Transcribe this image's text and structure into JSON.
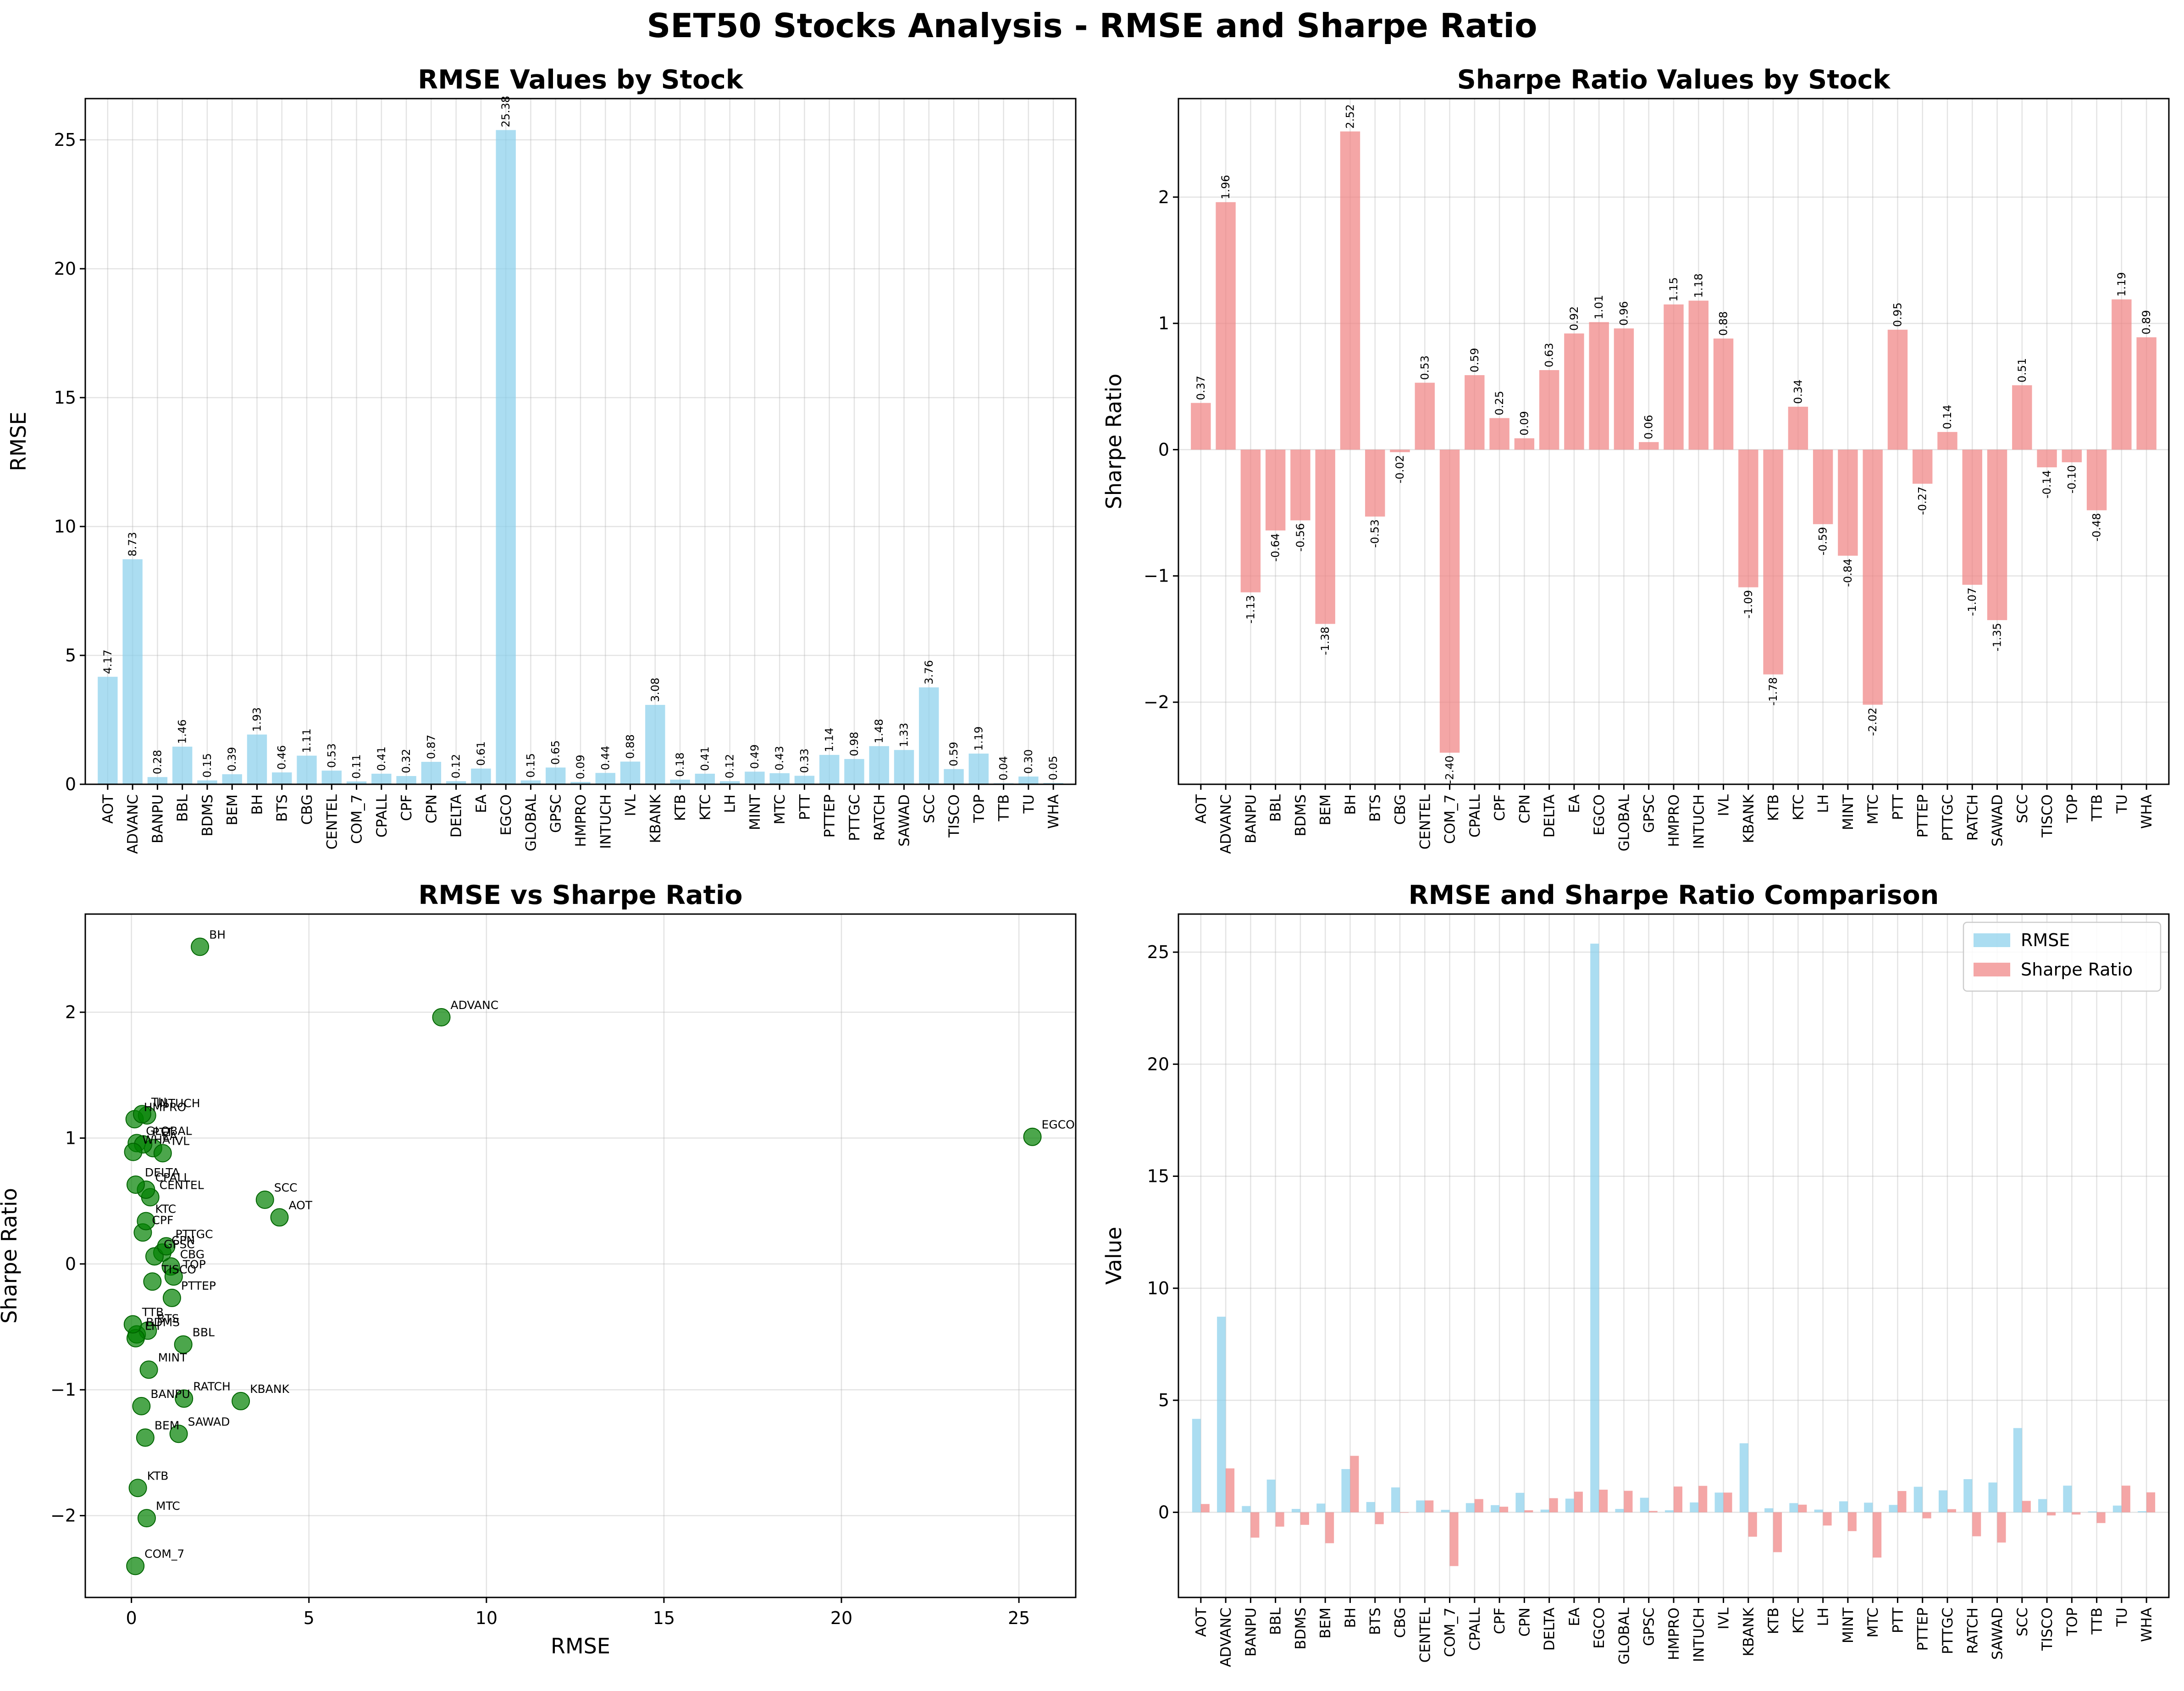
{
  "suptitle": "SET50 Stocks Analysis - RMSE and Sharpe Ratio",
  "colors": {
    "rmse": "#87ceeb",
    "sharpe": "#f08080",
    "scatter": "#008000"
  },
  "chart_data": [
    {
      "type": "bar",
      "title": "RMSE Values by Stock",
      "xlabel": "",
      "ylabel": "RMSE",
      "ylim": [
        0,
        26.6
      ],
      "yticks": [
        0,
        5,
        10,
        15,
        20,
        25
      ],
      "grid": true,
      "categories": [
        "AOT",
        "ADVANC",
        "BANPU",
        "BBL",
        "BDMS",
        "BEM",
        "BH",
        "BTS",
        "CBG",
        "CENTEL",
        "COM_7",
        "CPALL",
        "CPF",
        "CPN",
        "DELTA",
        "EA",
        "EGCO",
        "GLOBAL",
        "GPSC",
        "HMPRO",
        "INTUCH",
        "IVL",
        "KBANK",
        "KTB",
        "KTC",
        "LH",
        "MINT",
        "MTC",
        "PTT",
        "PTTEP",
        "PTTGC",
        "RATCH",
        "SAWAD",
        "SCC",
        "TISCO",
        "TOP",
        "TTB",
        "TU",
        "WHA"
      ],
      "values": [
        4.17,
        8.73,
        0.28,
        1.46,
        0.15,
        0.39,
        1.93,
        0.46,
        1.11,
        0.53,
        0.11,
        0.41,
        0.32,
        0.87,
        0.12,
        0.61,
        25.38,
        0.15,
        0.65,
        0.09,
        0.44,
        0.88,
        3.08,
        0.18,
        0.41,
        0.12,
        0.49,
        0.43,
        0.33,
        1.14,
        0.98,
        1.48,
        1.33,
        3.76,
        0.59,
        1.19,
        0.04,
        0.3,
        0.05
      ],
      "data_labels": [
        "4.17",
        "8.73",
        "0.28",
        "1.46",
        "0.15",
        "0.39",
        "1.93",
        "0.46",
        "1.11",
        "0.53",
        "0.11",
        "0.41",
        "0.32",
        "0.87",
        "0.12",
        "0.61",
        "25.38",
        "0.15",
        "0.65",
        "0.09",
        "0.44",
        "0.88",
        "3.08",
        "0.18",
        "0.41",
        "0.12",
        "0.49",
        "0.43",
        "0.33",
        "1.14",
        "0.98",
        "1.48",
        "1.33",
        "3.76",
        "0.59",
        "1.19",
        "0.04",
        "0.30",
        "0.05"
      ]
    },
    {
      "type": "bar",
      "title": "Sharpe Ratio Values by Stock",
      "xlabel": "",
      "ylabel": "Sharpe Ratio",
      "ylim": [
        -2.65,
        2.78
      ],
      "yticks": [
        -2,
        -1,
        0,
        1,
        2
      ],
      "grid": true,
      "categories": [
        "AOT",
        "ADVANC",
        "BANPU",
        "BBL",
        "BDMS",
        "BEM",
        "BH",
        "BTS",
        "CBG",
        "CENTEL",
        "COM_7",
        "CPALL",
        "CPF",
        "CPN",
        "DELTA",
        "EA",
        "EGCO",
        "GLOBAL",
        "GPSC",
        "HMPRO",
        "INTUCH",
        "IVL",
        "KBANK",
        "KTB",
        "KTC",
        "LH",
        "MINT",
        "MTC",
        "PTT",
        "PTTEP",
        "PTTGC",
        "RATCH",
        "SAWAD",
        "SCC",
        "TISCO",
        "TOP",
        "TTB",
        "TU",
        "WHA"
      ],
      "values": [
        0.37,
        1.96,
        -1.13,
        -0.64,
        -0.56,
        -1.38,
        2.52,
        -0.53,
        -0.02,
        0.53,
        -2.4,
        0.59,
        0.25,
        0.09,
        0.63,
        0.92,
        1.01,
        0.96,
        0.06,
        1.15,
        1.18,
        0.88,
        -1.09,
        -1.78,
        0.34,
        -0.59,
        -0.84,
        -2.02,
        0.95,
        -0.27,
        0.14,
        -1.07,
        -1.35,
        0.51,
        -0.14,
        -0.1,
        -0.48,
        1.19,
        0.89
      ],
      "data_labels": [
        "0.37",
        "1.96",
        "-1.13",
        "-0.64",
        "-0.56",
        "-1.38",
        "2.52",
        "-0.53",
        "-0.02",
        "0.53",
        "-2.40",
        "0.59",
        "0.25",
        "0.09",
        "0.63",
        "0.92",
        "1.01",
        "0.96",
        "0.06",
        "1.15",
        "1.18",
        "0.88",
        "-1.09",
        "-1.78",
        "0.34",
        "-0.59",
        "-0.84",
        "-2.02",
        "0.95",
        "-0.27",
        "0.14",
        "-1.07",
        "-1.35",
        "0.51",
        "-0.14",
        "-0.10",
        "-0.48",
        "1.19",
        "0.89"
      ]
    },
    {
      "type": "scatter",
      "title": "RMSE vs Sharpe Ratio",
      "xlabel": "RMSE",
      "ylabel": "Sharpe Ratio",
      "xlim": [
        -1.3,
        26.6
      ],
      "ylim": [
        -2.65,
        2.78
      ],
      "xticks": [
        0,
        5,
        10,
        15,
        20,
        25
      ],
      "yticks": [
        -2,
        -1,
        0,
        1,
        2
      ],
      "grid": true,
      "points": [
        {
          "label": "AOT",
          "x": 4.17,
          "y": 0.37
        },
        {
          "label": "ADVANC",
          "x": 8.73,
          "y": 1.96
        },
        {
          "label": "BANPU",
          "x": 0.28,
          "y": -1.13
        },
        {
          "label": "BBL",
          "x": 1.46,
          "y": -0.64
        },
        {
          "label": "BDMS",
          "x": 0.15,
          "y": -0.56
        },
        {
          "label": "BEM",
          "x": 0.39,
          "y": -1.38
        },
        {
          "label": "BH",
          "x": 1.93,
          "y": 2.52
        },
        {
          "label": "BTS",
          "x": 0.46,
          "y": -0.53
        },
        {
          "label": "CBG",
          "x": 1.11,
          "y": -0.02
        },
        {
          "label": "CENTEL",
          "x": 0.53,
          "y": 0.53
        },
        {
          "label": "COM_7",
          "x": 0.11,
          "y": -2.4
        },
        {
          "label": "CPALL",
          "x": 0.41,
          "y": 0.59
        },
        {
          "label": "CPF",
          "x": 0.32,
          "y": 0.25
        },
        {
          "label": "CPN",
          "x": 0.87,
          "y": 0.09
        },
        {
          "label": "DELTA",
          "x": 0.12,
          "y": 0.63
        },
        {
          "label": "EA",
          "x": 0.61,
          "y": 0.92
        },
        {
          "label": "EGCO",
          "x": 25.38,
          "y": 1.01
        },
        {
          "label": "GLOBAL",
          "x": 0.15,
          "y": 0.96
        },
        {
          "label": "GPSC",
          "x": 0.65,
          "y": 0.06
        },
        {
          "label": "HMPRO",
          "x": 0.09,
          "y": 1.15
        },
        {
          "label": "INTUCH",
          "x": 0.44,
          "y": 1.18
        },
        {
          "label": "IVL",
          "x": 0.88,
          "y": 0.88
        },
        {
          "label": "KBANK",
          "x": 3.08,
          "y": -1.09
        },
        {
          "label": "KTB",
          "x": 0.18,
          "y": -1.78
        },
        {
          "label": "KTC",
          "x": 0.41,
          "y": 0.34
        },
        {
          "label": "LH",
          "x": 0.12,
          "y": -0.59
        },
        {
          "label": "MINT",
          "x": 0.49,
          "y": -0.84
        },
        {
          "label": "MTC",
          "x": 0.43,
          "y": -2.02
        },
        {
          "label": "PTT",
          "x": 0.33,
          "y": 0.95
        },
        {
          "label": "PTTEP",
          "x": 1.14,
          "y": -0.27
        },
        {
          "label": "PTTGC",
          "x": 0.98,
          "y": 0.14
        },
        {
          "label": "RATCH",
          "x": 1.48,
          "y": -1.07
        },
        {
          "label": "SAWAD",
          "x": 1.33,
          "y": -1.35
        },
        {
          "label": "SCC",
          "x": 3.76,
          "y": 0.51
        },
        {
          "label": "TISCO",
          "x": 0.59,
          "y": -0.14
        },
        {
          "label": "TOP",
          "x": 1.19,
          "y": -0.1
        },
        {
          "label": "TTB",
          "x": 0.04,
          "y": -0.48
        },
        {
          "label": "TU",
          "x": 0.3,
          "y": 1.19
        },
        {
          "label": "WHA",
          "x": 0.05,
          "y": 0.89
        }
      ]
    },
    {
      "type": "bar",
      "title": "RMSE and Sharpe Ratio Comparison",
      "xlabel": "",
      "ylabel": "Value",
      "ylim": [
        -3.8,
        26.7
      ],
      "yticks": [
        0,
        5,
        10,
        15,
        20,
        25
      ],
      "grid": true,
      "legend": "top-right",
      "categories": [
        "AOT",
        "ADVANC",
        "BANPU",
        "BBL",
        "BDMS",
        "BEM",
        "BH",
        "BTS",
        "CBG",
        "CENTEL",
        "COM_7",
        "CPALL",
        "CPF",
        "CPN",
        "DELTA",
        "EA",
        "EGCO",
        "GLOBAL",
        "GPSC",
        "HMPRO",
        "INTUCH",
        "IVL",
        "KBANK",
        "KTB",
        "KTC",
        "LH",
        "MINT",
        "MTC",
        "PTT",
        "PTTEP",
        "PTTGC",
        "RATCH",
        "SAWAD",
        "SCC",
        "TISCO",
        "TOP",
        "TTB",
        "TU",
        "WHA"
      ],
      "series": [
        {
          "name": "RMSE",
          "values": [
            4.17,
            8.73,
            0.28,
            1.46,
            0.15,
            0.39,
            1.93,
            0.46,
            1.11,
            0.53,
            0.11,
            0.41,
            0.32,
            0.87,
            0.12,
            0.61,
            25.38,
            0.15,
            0.65,
            0.09,
            0.44,
            0.88,
            3.08,
            0.18,
            0.41,
            0.12,
            0.49,
            0.43,
            0.33,
            1.14,
            0.98,
            1.48,
            1.33,
            3.76,
            0.59,
            1.19,
            0.04,
            0.3,
            0.05
          ]
        },
        {
          "name": "Sharpe Ratio",
          "values": [
            0.37,
            1.96,
            -1.13,
            -0.64,
            -0.56,
            -1.38,
            2.52,
            -0.53,
            -0.02,
            0.53,
            -2.4,
            0.59,
            0.25,
            0.09,
            0.63,
            0.92,
            1.01,
            0.96,
            0.06,
            1.15,
            1.18,
            0.88,
            -1.09,
            -1.78,
            0.34,
            -0.59,
            -0.84,
            -2.02,
            0.95,
            -0.27,
            0.14,
            -1.07,
            -1.35,
            0.51,
            -0.14,
            -0.1,
            -0.48,
            1.19,
            0.89
          ]
        }
      ]
    }
  ]
}
